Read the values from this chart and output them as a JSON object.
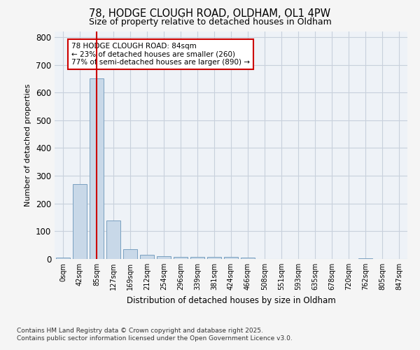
{
  "title_line1": "78, HODGE CLOUGH ROAD, OLDHAM, OL1 4PW",
  "title_line2": "Size of property relative to detached houses in Oldham",
  "xlabel": "Distribution of detached houses by size in Oldham",
  "ylabel": "Number of detached properties",
  "bar_labels": [
    "0sqm",
    "42sqm",
    "85sqm",
    "127sqm",
    "169sqm",
    "212sqm",
    "254sqm",
    "296sqm",
    "339sqm",
    "381sqm",
    "424sqm",
    "466sqm",
    "508sqm",
    "551sqm",
    "593sqm",
    "635sqm",
    "678sqm",
    "720sqm",
    "762sqm",
    "805sqm",
    "847sqm"
  ],
  "bar_values": [
    5,
    270,
    650,
    140,
    35,
    15,
    10,
    8,
    8,
    8,
    8,
    5,
    0,
    0,
    0,
    0,
    0,
    0,
    2,
    0,
    0
  ],
  "bar_color": "#c8d8e8",
  "bar_edge_color": "#7aa0c0",
  "red_line_index": 2,
  "red_line_color": "#cc0000",
  "annotation_title": "78 HODGE CLOUGH ROAD: 84sqm",
  "annotation_line1": "← 23% of detached houses are smaller (260)",
  "annotation_line2": "77% of semi-detached houses are larger (890) →",
  "annotation_box_color": "#ffffff",
  "annotation_border_color": "#cc0000",
  "ylim": [
    0,
    820
  ],
  "yticks": [
    0,
    100,
    200,
    300,
    400,
    500,
    600,
    700,
    800
  ],
  "footnote1": "Contains HM Land Registry data © Crown copyright and database right 2025.",
  "footnote2": "Contains public sector information licensed under the Open Government Licence v3.0.",
  "bg_color": "#eef2f7",
  "fig_bg_color": "#f5f5f5",
  "grid_color": "#c8d0dc"
}
